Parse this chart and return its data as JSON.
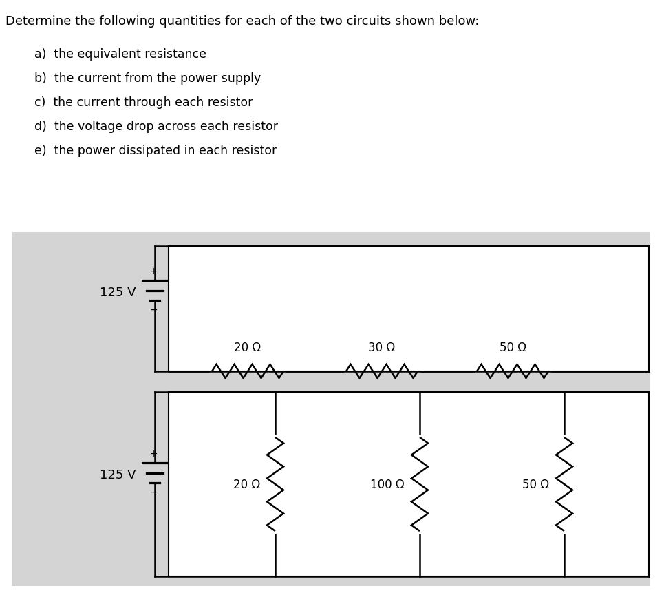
{
  "title": "Determine the following quantities for each of the two circuits shown below:",
  "questions": [
    "a)  the equivalent resistance",
    "b)  the current from the power supply",
    "c)  the current through each resistor",
    "d)  the voltage drop across each resistor",
    "e)  the power dissipated in each resistor"
  ],
  "background_color": "#d4d4d4",
  "page_background": "#ffffff",
  "line_color": "#000000",
  "circuit1": {
    "voltage": "125 V",
    "resistors": [
      "20 Ω",
      "30 Ω",
      "50 Ω"
    ],
    "type": "series"
  },
  "circuit2": {
    "voltage": "125 V",
    "resistors": [
      "20 Ω",
      "100 Ω",
      "50 Ω"
    ],
    "type": "parallel"
  },
  "fig_width": 9.65,
  "fig_height": 8.62,
  "dpi": 100
}
